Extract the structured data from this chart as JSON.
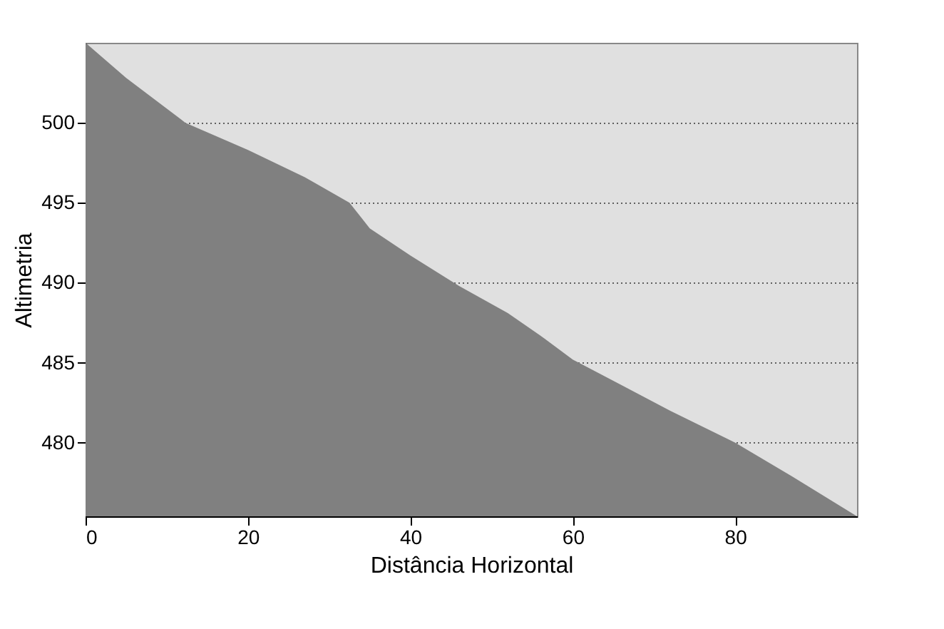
{
  "chart_data": {
    "type": "area",
    "xlabel": "Distância Horizontal",
    "ylabel": "Altimetria",
    "x": [
      0,
      5,
      12.3,
      20,
      27,
      32.5,
      35,
      40,
      46,
      52,
      56,
      60,
      66,
      72,
      80,
      87,
      95
    ],
    "series": [
      {
        "color": "#808080",
        "values": [
          505,
          502.8,
          500,
          498.3,
          496.6,
          495,
          493.4,
          491.7,
          489.8,
          488.1,
          486.7,
          485.2,
          483.6,
          482,
          480,
          477.9,
          475.4
        ]
      }
    ],
    "xlim": [
      0,
      95
    ],
    "ylim": [
      475.4,
      505
    ],
    "xticks": [
      0,
      20,
      40,
      60,
      80
    ],
    "yticks": [
      480,
      485,
      490,
      495,
      500
    ],
    "grid": "y"
  }
}
